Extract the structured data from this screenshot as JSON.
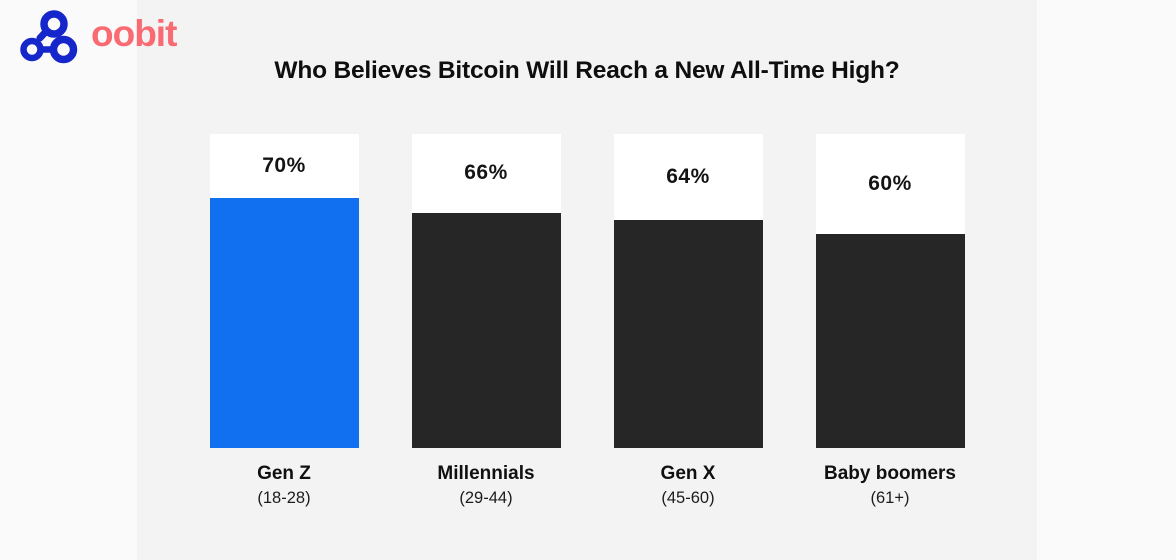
{
  "brand": {
    "name": "oobit"
  },
  "colors": {
    "accent_blue": "#1170F0",
    "bar_dark": "#262626",
    "logo_icon_blue": "#1526CB",
    "logo_wordmark_pink": "#F96A72",
    "panel_background": "#F3F3F3",
    "page_background": "#FAFAFA",
    "bar_track_white": "#FFFFFF",
    "text": "#111111"
  },
  "chart_data": {
    "type": "bar",
    "title": "Who Believes Bitcoin Will Reach a New All-Time High?",
    "categories": [
      "Gen Z",
      "Millennials",
      "Gen X",
      "Baby boomers"
    ],
    "category_ranges": [
      "(18-28)",
      "(29-44)",
      "(45-60)",
      "(61+)"
    ],
    "values": [
      70,
      66,
      64,
      60
    ],
    "value_labels": [
      "70%",
      "66%",
      "64%",
      "60%"
    ],
    "bar_colors": [
      "#1170F0",
      "#262626",
      "#262626",
      "#262626"
    ],
    "unit": "%",
    "ylim": [
      0,
      88
    ],
    "xlabel": "",
    "ylabel": "",
    "grid": false,
    "legend": false,
    "value_label_position": "inside-track-above-bar"
  }
}
